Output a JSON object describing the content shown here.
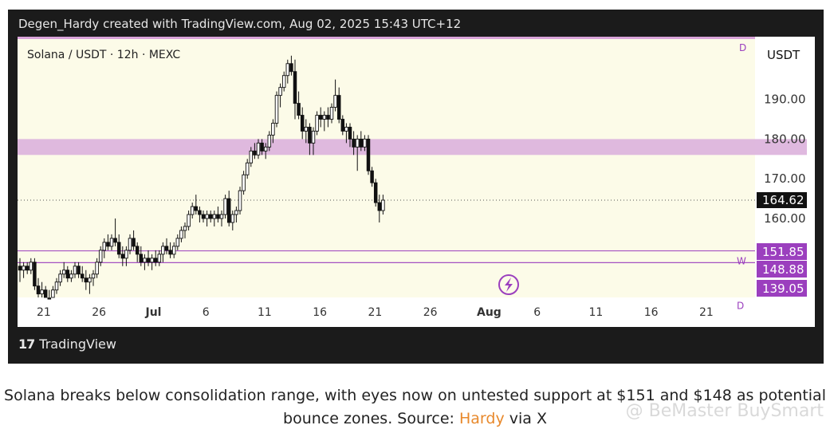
{
  "header": {
    "text": "Degen_Hardy created with TradingView.com, Aug 02, 2025 15:43 UTC+12"
  },
  "brand": {
    "logo_icon": "tradingview-logo-icon",
    "name": "TradingView",
    "logo_text": "17"
  },
  "caption": {
    "line1": "Solana breaks below consolidation range, with eyes now on untested support at $151 and $148 as potential",
    "line2_prefix": "bounce zones. Source: ",
    "link": "Hardy",
    "line2_suffix": " via X"
  },
  "watermark": "@ BeMaster BuySmart",
  "colors": {
    "zone": "#ddb5dd",
    "support": "#9b3fbe",
    "price_label": "#9b3fbe",
    "background": "#fcfbe8",
    "candle": "#111111"
  },
  "chart_data": {
    "type": "candlestick",
    "title": "Solana / USDT · 12h · MEXC",
    "ylabel": "USDT",
    "ylim": [
      137,
      200
    ],
    "y_ticks": [
      160,
      170,
      180,
      190
    ],
    "y_tick_labels": [
      "160.00",
      "170.00",
      "180.00",
      "190.00"
    ],
    "x_tick_labels": [
      "21",
      "26",
      "Jul",
      "6",
      "11",
      "16",
      "21",
      "26",
      "Aug",
      "6",
      "11",
      "16",
      "21"
    ],
    "x_tick_days": [
      0,
      5,
      10,
      15,
      20,
      25,
      30,
      35,
      40,
      45,
      50,
      55,
      60
    ],
    "current_price": {
      "value": 164.62,
      "label": "164.62"
    },
    "zones": [
      {
        "from": 176,
        "to": 180
      }
    ],
    "top_line": {
      "value": 199.5,
      "marker": "D"
    },
    "support_levels": [
      {
        "value": 151.85,
        "label": "151.85",
        "marker": ""
      },
      {
        "value": 148.88,
        "label": "148.88",
        "marker": "W"
      },
      {
        "value": 139.05,
        "label": "139.05",
        "marker": "D"
      }
    ],
    "lightning_icon": "lightning-icon",
    "candles": [
      {
        "o": 148,
        "h": 150,
        "l": 144,
        "c": 147
      },
      {
        "o": 147,
        "h": 149,
        "l": 145,
        "c": 148
      },
      {
        "o": 148,
        "h": 149,
        "l": 146,
        "c": 147
      },
      {
        "o": 147,
        "h": 150,
        "l": 146,
        "c": 149
      },
      {
        "o": 149,
        "h": 150,
        "l": 142,
        "c": 143
      },
      {
        "o": 143,
        "h": 145,
        "l": 140,
        "c": 141
      },
      {
        "o": 141,
        "h": 144,
        "l": 139,
        "c": 142
      },
      {
        "o": 142,
        "h": 143,
        "l": 139,
        "c": 140
      },
      {
        "o": 140,
        "h": 142,
        "l": 137,
        "c": 139
      },
      {
        "o": 139,
        "h": 143,
        "l": 138,
        "c": 142
      },
      {
        "o": 142,
        "h": 145,
        "l": 141,
        "c": 144
      },
      {
        "o": 144,
        "h": 147,
        "l": 143,
        "c": 146
      },
      {
        "o": 146,
        "h": 149,
        "l": 145,
        "c": 147
      },
      {
        "o": 147,
        "h": 148,
        "l": 144,
        "c": 145
      },
      {
        "o": 145,
        "h": 147,
        "l": 144,
        "c": 146
      },
      {
        "o": 146,
        "h": 149,
        "l": 145,
        "c": 148
      },
      {
        "o": 148,
        "h": 149,
        "l": 145,
        "c": 146
      },
      {
        "o": 146,
        "h": 148,
        "l": 144,
        "c": 145
      },
      {
        "o": 145,
        "h": 147,
        "l": 142,
        "c": 144
      },
      {
        "o": 144,
        "h": 146,
        "l": 141,
        "c": 145
      },
      {
        "o": 145,
        "h": 147,
        "l": 143,
        "c": 146
      },
      {
        "o": 146,
        "h": 150,
        "l": 145,
        "c": 149
      },
      {
        "o": 149,
        "h": 153,
        "l": 148,
        "c": 152
      },
      {
        "o": 152,
        "h": 155,
        "l": 150,
        "c": 154
      },
      {
        "o": 154,
        "h": 156,
        "l": 152,
        "c": 153
      },
      {
        "o": 153,
        "h": 156,
        "l": 152,
        "c": 155
      },
      {
        "o": 155,
        "h": 160,
        "l": 153,
        "c": 154
      },
      {
        "o": 154,
        "h": 156,
        "l": 150,
        "c": 151
      },
      {
        "o": 151,
        "h": 153,
        "l": 148,
        "c": 150
      },
      {
        "o": 150,
        "h": 153,
        "l": 148,
        "c": 152
      },
      {
        "o": 152,
        "h": 156,
        "l": 151,
        "c": 155
      },
      {
        "o": 155,
        "h": 157,
        "l": 152,
        "c": 153
      },
      {
        "o": 153,
        "h": 154,
        "l": 149,
        "c": 151
      },
      {
        "o": 151,
        "h": 153,
        "l": 148,
        "c": 149
      },
      {
        "o": 149,
        "h": 151,
        "l": 147,
        "c": 150
      },
      {
        "o": 150,
        "h": 152,
        "l": 148,
        "c": 149
      },
      {
        "o": 149,
        "h": 151,
        "l": 147,
        "c": 150
      },
      {
        "o": 150,
        "h": 152,
        "l": 148,
        "c": 149
      },
      {
        "o": 149,
        "h": 152,
        "l": 148,
        "c": 151
      },
      {
        "o": 151,
        "h": 154,
        "l": 149,
        "c": 153
      },
      {
        "o": 153,
        "h": 155,
        "l": 151,
        "c": 152
      },
      {
        "o": 152,
        "h": 154,
        "l": 150,
        "c": 151
      },
      {
        "o": 151,
        "h": 154,
        "l": 150,
        "c": 153
      },
      {
        "o": 153,
        "h": 156,
        "l": 152,
        "c": 155
      },
      {
        "o": 155,
        "h": 158,
        "l": 154,
        "c": 157
      },
      {
        "o": 157,
        "h": 159,
        "l": 155,
        "c": 158
      },
      {
        "o": 158,
        "h": 162,
        "l": 157,
        "c": 161
      },
      {
        "o": 161,
        "h": 164,
        "l": 160,
        "c": 163
      },
      {
        "o": 163,
        "h": 166,
        "l": 161,
        "c": 162
      },
      {
        "o": 162,
        "h": 163,
        "l": 159,
        "c": 161
      },
      {
        "o": 161,
        "h": 162,
        "l": 159,
        "c": 160
      },
      {
        "o": 160,
        "h": 162,
        "l": 158,
        "c": 161
      },
      {
        "o": 161,
        "h": 162,
        "l": 159,
        "c": 160
      },
      {
        "o": 160,
        "h": 162,
        "l": 158,
        "c": 161
      },
      {
        "o": 161,
        "h": 163,
        "l": 159,
        "c": 160
      },
      {
        "o": 160,
        "h": 162,
        "l": 158,
        "c": 161
      },
      {
        "o": 161,
        "h": 166,
        "l": 160,
        "c": 165
      },
      {
        "o": 165,
        "h": 167,
        "l": 158,
        "c": 159
      },
      {
        "o": 159,
        "h": 162,
        "l": 157,
        "c": 161
      },
      {
        "o": 161,
        "h": 163,
        "l": 159,
        "c": 162
      },
      {
        "o": 162,
        "h": 168,
        "l": 161,
        "c": 167
      },
      {
        "o": 167,
        "h": 172,
        "l": 166,
        "c": 171
      },
      {
        "o": 171,
        "h": 175,
        "l": 170,
        "c": 174
      },
      {
        "o": 174,
        "h": 178,
        "l": 173,
        "c": 177
      },
      {
        "o": 177,
        "h": 179,
        "l": 175,
        "c": 176
      },
      {
        "o": 176,
        "h": 180,
        "l": 175,
        "c": 179
      },
      {
        "o": 179,
        "h": 180,
        "l": 176,
        "c": 177
      },
      {
        "o": 177,
        "h": 179,
        "l": 175,
        "c": 178
      },
      {
        "o": 178,
        "h": 182,
        "l": 177,
        "c": 181
      },
      {
        "o": 181,
        "h": 185,
        "l": 179,
        "c": 184
      },
      {
        "o": 184,
        "h": 192,
        "l": 183,
        "c": 191
      },
      {
        "o": 191,
        "h": 194,
        "l": 188,
        "c": 193
      },
      {
        "o": 193,
        "h": 197,
        "l": 192,
        "c": 196
      },
      {
        "o": 196,
        "h": 200,
        "l": 194,
        "c": 199
      },
      {
        "o": 199,
        "h": 201,
        "l": 196,
        "c": 197
      },
      {
        "o": 197,
        "h": 200,
        "l": 185,
        "c": 189
      },
      {
        "o": 189,
        "h": 192,
        "l": 185,
        "c": 186
      },
      {
        "o": 186,
        "h": 188,
        "l": 180,
        "c": 182
      },
      {
        "o": 182,
        "h": 185,
        "l": 179,
        "c": 183
      },
      {
        "o": 183,
        "h": 184,
        "l": 176,
        "c": 179
      },
      {
        "o": 179,
        "h": 183,
        "l": 176,
        "c": 182
      },
      {
        "o": 182,
        "h": 187,
        "l": 181,
        "c": 186
      },
      {
        "o": 186,
        "h": 188,
        "l": 183,
        "c": 185
      },
      {
        "o": 185,
        "h": 187,
        "l": 182,
        "c": 186
      },
      {
        "o": 186,
        "h": 188,
        "l": 183,
        "c": 185
      },
      {
        "o": 185,
        "h": 189,
        "l": 184,
        "c": 188
      },
      {
        "o": 188,
        "h": 195,
        "l": 187,
        "c": 191
      },
      {
        "o": 191,
        "h": 193,
        "l": 184,
        "c": 185
      },
      {
        "o": 185,
        "h": 186,
        "l": 181,
        "c": 182
      },
      {
        "o": 182,
        "h": 184,
        "l": 179,
        "c": 183
      },
      {
        "o": 183,
        "h": 184,
        "l": 178,
        "c": 180
      },
      {
        "o": 180,
        "h": 182,
        "l": 176,
        "c": 178
      },
      {
        "o": 178,
        "h": 181,
        "l": 172,
        "c": 180
      },
      {
        "o": 180,
        "h": 182,
        "l": 177,
        "c": 178
      },
      {
        "o": 178,
        "h": 181,
        "l": 177,
        "c": 180
      },
      {
        "o": 180,
        "h": 181,
        "l": 171,
        "c": 172
      },
      {
        "o": 172,
        "h": 173,
        "l": 168,
        "c": 169
      },
      {
        "o": 169,
        "h": 170,
        "l": 163,
        "c": 164
      },
      {
        "o": 164,
        "h": 166,
        "l": 159,
        "c": 162
      },
      {
        "o": 162,
        "h": 166,
        "l": 161,
        "c": 164.62
      }
    ]
  }
}
